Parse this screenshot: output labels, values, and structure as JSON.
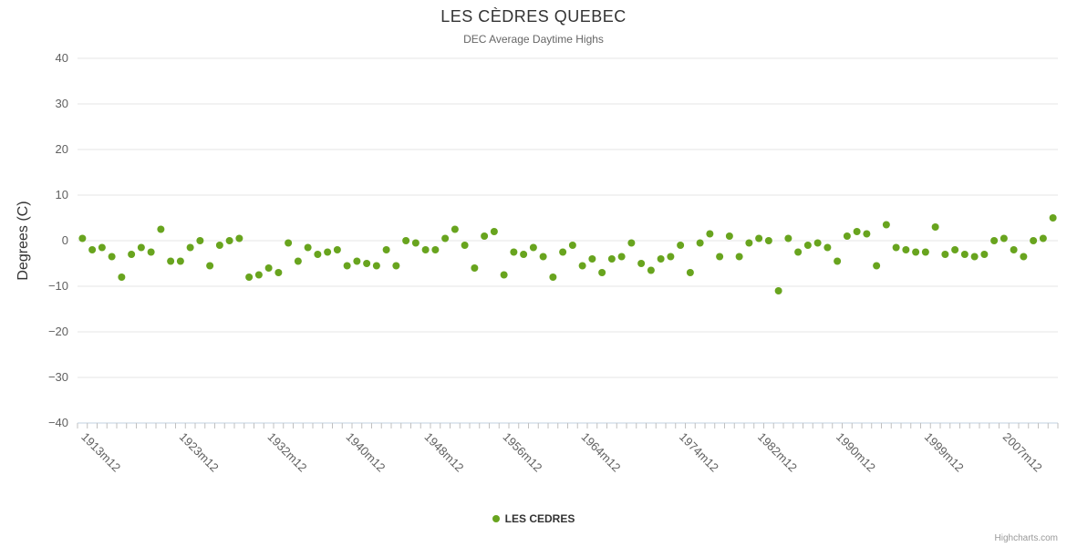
{
  "title": "LES CÈDRES QUEBEC",
  "subtitle": "DEC Average Daytime Highs",
  "y_axis_title": "Degrees (C)",
  "legend": {
    "label": "LES CEDRES"
  },
  "credits": "Highcharts.com",
  "colors": {
    "series": "#68a41e",
    "grid": "#e6e6e6",
    "axis_line": "#c0d0e0",
    "tick": "#c0c0c0",
    "axis_label": "#606060",
    "title": "#333333",
    "subtitle": "#666666"
  },
  "chart_data": {
    "type": "scatter",
    "title": "LES CÈDRES QUEBEC",
    "subtitle": "DEC Average Daytime Highs",
    "xlabel": "",
    "ylabel": "Degrees (C)",
    "ylim": [
      -40,
      40
    ],
    "y_ticks": [
      40,
      30,
      20,
      10,
      0,
      -10,
      -20,
      -30,
      -40
    ],
    "grid": true,
    "legend_position": "bottom-center",
    "series_name": "LES CEDRES",
    "category_suffix": "m12",
    "start_year": 1913,
    "x_tick_labels": [
      "1913m12",
      "1923m12",
      "1932m12",
      "1940m12",
      "1948m12",
      "1956m12",
      "1964m12",
      "1974m12",
      "1982m12",
      "1990m12",
      "1999m12",
      "2007m12"
    ],
    "x_tick_indices": [
      0,
      10,
      19,
      27,
      35,
      43,
      51,
      61,
      69,
      77,
      86,
      94
    ],
    "values": [
      0.5,
      -2,
      -1.5,
      -3.5,
      -8,
      -3,
      -1.5,
      -2.5,
      2.5,
      -4.5,
      -4.5,
      -1.5,
      0,
      -5.5,
      -1,
      0,
      0.5,
      -8,
      -7.5,
      -6,
      -7,
      -0.5,
      -4.5,
      -1.5,
      -3,
      -2.5,
      -2,
      -5.5,
      -4.5,
      -5,
      -5.5,
      -2,
      -5.5,
      0,
      -0.5,
      -2,
      -2,
      0.5,
      2.5,
      -1,
      -6,
      1,
      2,
      -7.5,
      -2.5,
      -3,
      -1.5,
      -3.5,
      -8,
      -2.5,
      -1,
      -5.5,
      -4,
      -7,
      -4,
      -3.5,
      -0.5,
      -5,
      -6.5,
      -4,
      -3.5,
      -1,
      -7,
      -0.5,
      1.5,
      -3.5,
      1,
      -3.5,
      -0.5,
      0.5,
      0,
      -11,
      0.5,
      -2.5,
      -1,
      -0.5,
      -1.5,
      -4.5,
      1,
      2,
      1.5,
      -5.5,
      3.5,
      -1.5,
      -2,
      -2.5,
      -2.5,
      3,
      -3,
      -2,
      -3,
      -3.5,
      -3,
      0,
      0.5,
      -2,
      -3.5,
      0,
      0.5,
      5
    ]
  }
}
